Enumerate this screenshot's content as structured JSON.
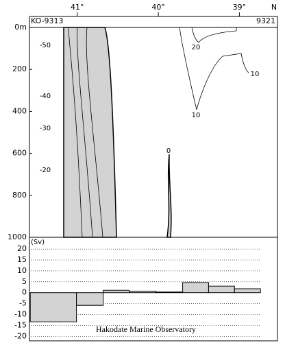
{
  "chart_data": [
    {
      "type": "contour",
      "x_label": "N",
      "annotations": [
        "KO-9313",
        "9321"
      ],
      "xlim": [
        41.59,
        38.53
      ],
      "xticks": [
        {
          "value": 41,
          "label": "41°"
        },
        {
          "value": 40,
          "label": "40°"
        },
        {
          "value": 39,
          "label": "39°"
        }
      ],
      "ylim": [
        0,
        1000
      ],
      "y_inverted": true,
      "yticks": [
        {
          "value": 0,
          "label": "0m"
        },
        200,
        400,
        600,
        800,
        1000
      ],
      "contours": [
        -50,
        -40,
        -30,
        -20,
        0,
        10,
        20
      ],
      "fill_color": "#d3d3d3"
    },
    {
      "type": "histogram",
      "y_label": "(Sv)",
      "annotation": "Hakodate Marine Observatory",
      "xlim": [
        41.59,
        38.53
      ],
      "bins": [
        41.58,
        41.01,
        40.68,
        40.36,
        40.03,
        39.7,
        39.38,
        39.06,
        38.74
      ],
      "values": [
        -13.4,
        -5.8,
        1.1,
        0.7,
        0.3,
        4.6,
        3.0,
        1.8
      ],
      "ylim": [
        -22.1,
        25.4
      ],
      "yticks": [
        -20,
        -15,
        -10,
        -5,
        0,
        5,
        10,
        15,
        20
      ],
      "grid": true,
      "color": "#d3d3d3"
    }
  ]
}
